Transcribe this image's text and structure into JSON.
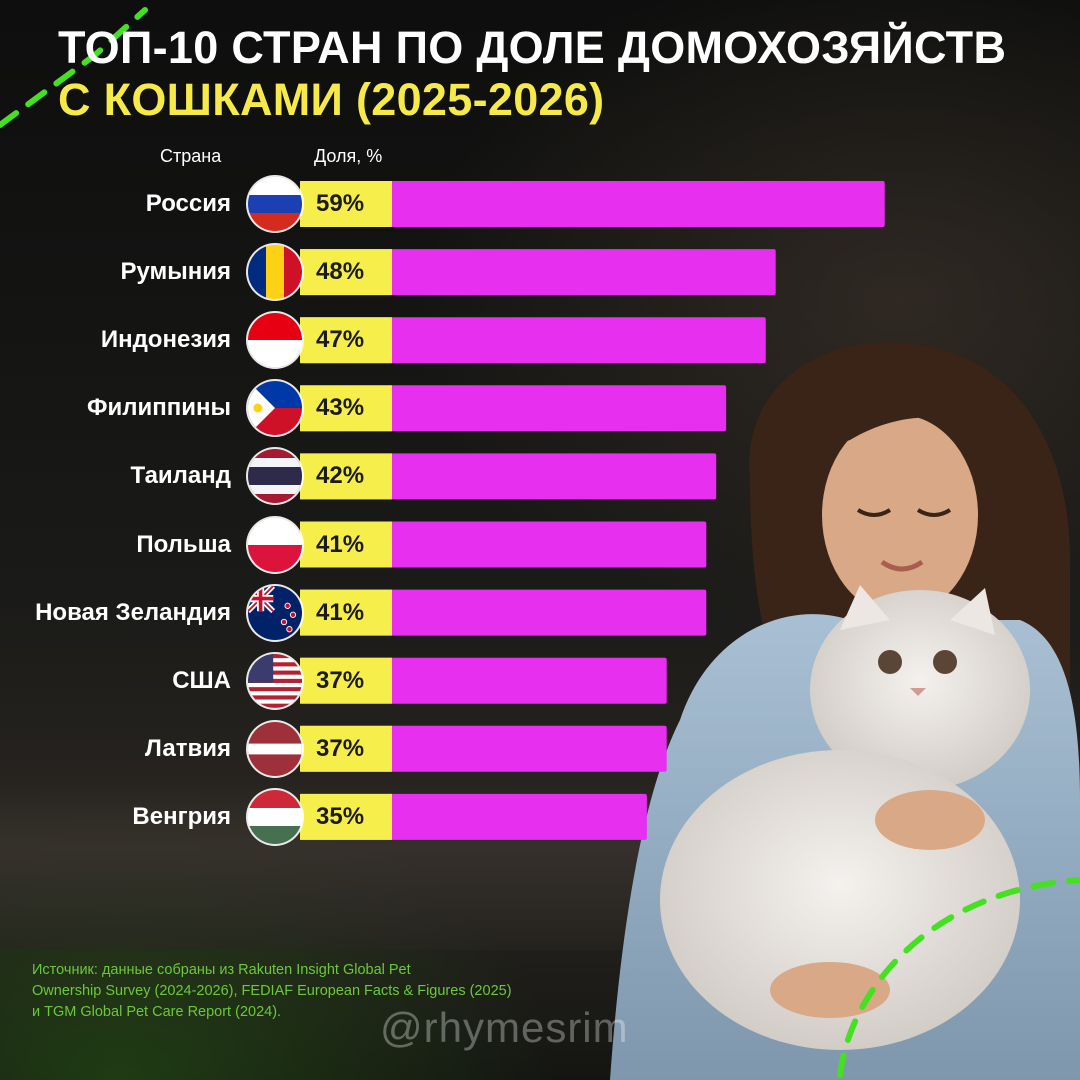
{
  "title_line1": "ТОП-10 СТРАН ПО ДОЛЕ ДОМОХОЗЯЙСТВ",
  "title_line2": "С КОШКАМИ (2025-2026)",
  "column_country": "Страна",
  "column_share": "Доля, %",
  "source_line1": "Источник: данные собраны из Rakuten Insight Global Pet",
  "source_line2": "Ownership Survey (2024-2026), FEDIAF European Facts & Figures (2025)",
  "source_line3": "и TGM Global Pet Care Report (2024).",
  "handle": "@rhymesrim",
  "colors": {
    "bar": "#e72ff0",
    "label_box": "#f6ef4b",
    "title_accent": "#f6e94a",
    "source_text": "#6cc83a",
    "decor_dash": "#44e021"
  },
  "chart_data": {
    "type": "bar",
    "orientation": "horizontal",
    "title": "ТОП-10 СТРАН ПО ДОЛЕ ДОМОХОЗЯЙСТВ С КОШКАМИ (2025-2026)",
    "xlabel": "Доля, %",
    "ylabel": "Страна",
    "unit": "%",
    "grid": false,
    "categories": [
      "Россия",
      "Румыния",
      "Индонезия",
      "Филиппины",
      "Таиланд",
      "Польша",
      "Новая Зеландия",
      "США",
      "Латвия",
      "Венгрия"
    ],
    "values": [
      59,
      48,
      47,
      43,
      42,
      41,
      41,
      37,
      37,
      35
    ],
    "value_labels": [
      "59%",
      "48%",
      "47%",
      "43%",
      "42%",
      "41%",
      "41%",
      "37%",
      "37%",
      "35%"
    ],
    "flags": [
      "russia-flag-icon",
      "romania-flag-icon",
      "indonesia-flag-icon",
      "philippines-flag-icon",
      "thailand-flag-icon",
      "poland-flag-icon",
      "new-zealand-flag-icon",
      "usa-flag-icon",
      "latvia-flag-icon",
      "hungary-flag-icon"
    ]
  }
}
